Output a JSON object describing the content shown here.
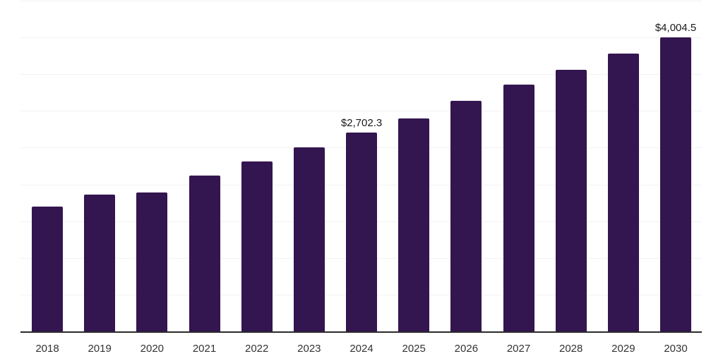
{
  "chart_data": {
    "type": "bar",
    "title": "",
    "xlabel": "",
    "ylabel": "",
    "categories": [
      "2018",
      "2019",
      "2020",
      "2021",
      "2022",
      "2023",
      "2024",
      "2025",
      "2026",
      "2027",
      "2028",
      "2029",
      "2030"
    ],
    "values": [
      1696,
      1862,
      1888,
      2121,
      2310,
      2502,
      2702.3,
      2896,
      3141,
      3359,
      3561,
      3776,
      4004.5
    ],
    "data_labels": {
      "2024": "$2,702.3",
      "2030": "$4,004.5"
    },
    "ylim": [
      0,
      4500
    ],
    "gridline_step": 500,
    "grid": "horizontal",
    "legend": "none",
    "colors": {
      "bar": "#331550",
      "data_label": "#1a1a1a",
      "axis_line": "#2b2b2b",
      "tick_label": "#333333",
      "gridline": "#f2f2f2",
      "background": "#ffffff"
    }
  }
}
